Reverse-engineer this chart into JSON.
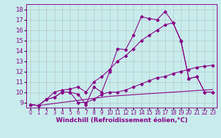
{
  "bg_color": "#c8ecec",
  "line_color": "#880088",
  "xlim": [
    -0.5,
    23.5
  ],
  "ylim": [
    8.5,
    18.5
  ],
  "xticks": [
    0,
    1,
    2,
    3,
    4,
    5,
    6,
    7,
    8,
    9,
    10,
    11,
    12,
    13,
    14,
    15,
    16,
    17,
    18,
    19,
    20,
    21,
    22,
    23
  ],
  "yticks": [
    9,
    10,
    11,
    12,
    13,
    14,
    15,
    16,
    17,
    18
  ],
  "line1_x": [
    0,
    1,
    2,
    3,
    4,
    5,
    6,
    7,
    8,
    9,
    10,
    11,
    12,
    13,
    14,
    15,
    16,
    17,
    18,
    19,
    20,
    21,
    22,
    23
  ],
  "line1_y": [
    8.8,
    8.7,
    9.3,
    9.5,
    10.0,
    10.0,
    9.0,
    9.0,
    9.3,
    9.8,
    10.0,
    10.0,
    10.2,
    10.5,
    10.8,
    11.1,
    11.4,
    11.5,
    11.8,
    12.0,
    12.2,
    12.4,
    12.5,
    12.6
  ],
  "line2_x": [
    0,
    1,
    2,
    3,
    4,
    5,
    6,
    7,
    8,
    9,
    10,
    11,
    12,
    13,
    14,
    15,
    16,
    17,
    18,
    19,
    20,
    21,
    22,
    23
  ],
  "line2_y": [
    8.8,
    8.7,
    9.3,
    9.5,
    10.0,
    10.0,
    9.8,
    8.8,
    10.5,
    10.0,
    12.0,
    14.2,
    14.1,
    15.5,
    17.3,
    17.1,
    17.0,
    17.8,
    16.7,
    14.9,
    11.3,
    11.5,
    10.0,
    10.0
  ],
  "line3_x": [
    0,
    1,
    2,
    3,
    4,
    5,
    6,
    7,
    8,
    9,
    10,
    11,
    12,
    13,
    14,
    15,
    16,
    17,
    18,
    19,
    20,
    21,
    22,
    23
  ],
  "line3_y": [
    8.8,
    8.7,
    9.3,
    10.0,
    10.2,
    10.3,
    10.5,
    10.0,
    11.0,
    11.5,
    12.2,
    13.0,
    13.5,
    14.2,
    15.0,
    15.5,
    16.0,
    16.5,
    16.7,
    15.0,
    11.3,
    11.5,
    10.0,
    10.0
  ],
  "line4_x": [
    0,
    1,
    2,
    3,
    4,
    5,
    6,
    7,
    8,
    9,
    10,
    11,
    12,
    13,
    14,
    15,
    16,
    17,
    18,
    19,
    20,
    21,
    22,
    23
  ],
  "line4_y": [
    8.8,
    8.7,
    8.8,
    8.9,
    9.0,
    9.1,
    9.2,
    9.3,
    9.4,
    9.5,
    9.6,
    9.65,
    9.7,
    9.75,
    9.8,
    9.85,
    9.9,
    9.95,
    10.0,
    10.05,
    10.1,
    10.15,
    10.2,
    10.25
  ],
  "grid_color": "#aaaaaa",
  "xlabel": "Windchill (Refroidissement éolien,°C)",
  "xlabel_fontsize": 6.5,
  "xtick_fontsize": 5.5,
  "ytick_fontsize": 6.5,
  "linewidth": 0.8,
  "markersize": 2.0
}
